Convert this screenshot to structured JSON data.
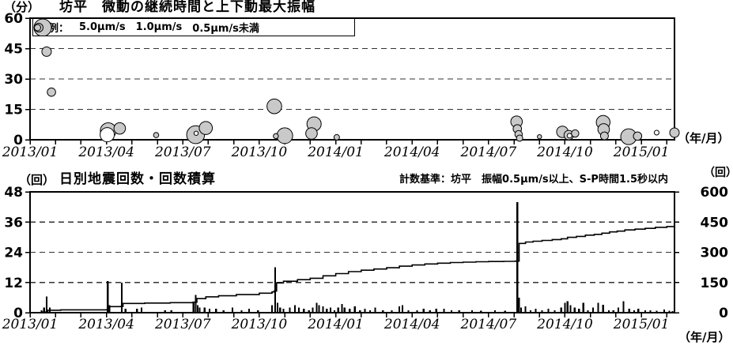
{
  "colors": {
    "background": "#ffffff",
    "axis": "#000000",
    "grid": "#333333",
    "bubble_fill": "#c9c9c9",
    "bubble_stroke": "#000000",
    "bar": "#000000",
    "line": "#000000"
  },
  "chart_data": [
    {
      "type": "scatter",
      "unit_label": "（分）",
      "title": "坊平　微動の継続時間と上下動最大振幅",
      "x_axis_suffix": "（年/月）",
      "ylim": [
        0,
        60
      ],
      "yticks": [
        0,
        15,
        30,
        45,
        60
      ],
      "ygrid": [
        15,
        30,
        45
      ],
      "x_start": "2013/01",
      "x_months_span": 25.3,
      "x_tick_labels": [
        {
          "m": 0,
          "label": "2013/01"
        },
        {
          "m": 3,
          "label": "2013/04"
        },
        {
          "m": 6,
          "label": "2013/07"
        },
        {
          "m": 9,
          "label": "2013/10"
        },
        {
          "m": 12,
          "label": "2014/01"
        },
        {
          "m": 15,
          "label": "2014/04"
        },
        {
          "m": 18,
          "label": "2014/07"
        },
        {
          "m": 21,
          "label": "2014/10"
        },
        {
          "m": 24,
          "label": "2015/01"
        }
      ],
      "legend": {
        "prefix": "凡例：",
        "items": [
          {
            "label": "5.0μm/s",
            "r": 11
          },
          {
            "label": "1.0μm/s",
            "r": 5.5
          },
          {
            "label": "0.5μm/s未満",
            "r": 4
          }
        ]
      },
      "bubbles": [
        {
          "m": 0.65,
          "v": 43.5,
          "r": 6
        },
        {
          "m": 0.84,
          "v": 23.5,
          "r": 5.3
        },
        {
          "m": 3.03,
          "v": 2.5,
          "r": 9,
          "open": true
        },
        {
          "m": 3.07,
          "v": 4.5,
          "r": 10
        },
        {
          "m": 3.52,
          "v": 5.6,
          "r": 7.3
        },
        {
          "m": 4.95,
          "v": 2.3,
          "r": 3.3
        },
        {
          "m": 6.5,
          "v": 2.5,
          "r": 11.3
        },
        {
          "m": 6.52,
          "v": 3.2,
          "r": 2.7,
          "open": true
        },
        {
          "m": 6.9,
          "v": 5.8,
          "r": 8.3
        },
        {
          "m": 9.59,
          "v": 16.5,
          "r": 9.3
        },
        {
          "m": 9.65,
          "v": 1.8,
          "r": 3.2
        },
        {
          "m": 10.0,
          "v": 2.0,
          "r": 10
        },
        {
          "m": 11.05,
          "v": 3.1,
          "r": 7.3
        },
        {
          "m": 11.15,
          "v": 7.8,
          "r": 9
        },
        {
          "m": 12.04,
          "v": 1.2,
          "r": 3.5
        },
        {
          "m": 19.1,
          "v": 8.9,
          "r": 7.3
        },
        {
          "m": 19.13,
          "v": 5.4,
          "r": 5.3
        },
        {
          "m": 19.18,
          "v": 2.7,
          "r": 4.7
        },
        {
          "m": 19.22,
          "v": 0.8,
          "r": 4
        },
        {
          "m": 20.0,
          "v": 1.5,
          "r": 2.7
        },
        {
          "m": 20.9,
          "v": 3.9,
          "r": 7.3
        },
        {
          "m": 21.15,
          "v": 2.3,
          "r": 6
        },
        {
          "m": 21.18,
          "v": 2.0,
          "r": 3,
          "open": true
        },
        {
          "m": 21.4,
          "v": 3.1,
          "r": 4.7
        },
        {
          "m": 22.5,
          "v": 8.6,
          "r": 8.7
        },
        {
          "m": 22.52,
          "v": 5.1,
          "r": 7.3
        },
        {
          "m": 22.55,
          "v": 1.9,
          "r": 5
        },
        {
          "m": 23.5,
          "v": 1.5,
          "r": 10
        },
        {
          "m": 23.85,
          "v": 1.8,
          "r": 5.3
        },
        {
          "m": 24.6,
          "v": 3.5,
          "r": 3,
          "open": true
        },
        {
          "m": 25.3,
          "v": 3.5,
          "r": 6
        }
      ]
    },
    {
      "type": "bar+line",
      "unit_label": "（回）",
      "title": "日別地震回数・回数積算",
      "note": "計数基準：坊平　振幅0.5μm/s以上、S-P時間1.5秒以内",
      "right_unit_label": "（回）",
      "x_axis_suffix": "（年/月）",
      "left_ylim": [
        0,
        48
      ],
      "left_yticks": [
        0,
        12,
        24,
        36,
        48
      ],
      "left_ygrid": [
        12,
        24,
        36
      ],
      "right_ylim": [
        0,
        600
      ],
      "right_yticks": [
        0,
        150,
        300,
        450,
        600
      ],
      "x_start": "2013/01",
      "x_months_span": 25.3,
      "x_tick_labels": [
        {
          "m": 0,
          "label": "2013/01"
        },
        {
          "m": 3,
          "label": "2013/04"
        },
        {
          "m": 6,
          "label": "2013/07"
        },
        {
          "m": 9,
          "label": "2013/10"
        },
        {
          "m": 12,
          "label": "2014/01"
        },
        {
          "m": 15,
          "label": "2014/04"
        },
        {
          "m": 18,
          "label": "2014/07"
        },
        {
          "m": 21,
          "label": "2014/10"
        },
        {
          "m": 24,
          "label": "2015/01"
        }
      ],
      "bars": [
        [
          0.45,
          1
        ],
        [
          0.55,
          2
        ],
        [
          0.65,
          6.5
        ],
        [
          0.78,
          2
        ],
        [
          3.05,
          12.5
        ],
        [
          3.12,
          3
        ],
        [
          3.6,
          12
        ],
        [
          3.75,
          1.5
        ],
        [
          4.2,
          1.5
        ],
        [
          4.38,
          2
        ],
        [
          5.3,
          1
        ],
        [
          5.55,
          1
        ],
        [
          6.42,
          4
        ],
        [
          6.5,
          7
        ],
        [
          6.58,
          3
        ],
        [
          6.66,
          2
        ],
        [
          6.85,
          2
        ],
        [
          7.05,
          1.5
        ],
        [
          7.3,
          1.5
        ],
        [
          7.6,
          1
        ],
        [
          7.95,
          2
        ],
        [
          8.3,
          1
        ],
        [
          8.6,
          1.5
        ],
        [
          8.95,
          1
        ],
        [
          9.5,
          3
        ],
        [
          9.62,
          18
        ],
        [
          9.72,
          4
        ],
        [
          9.82,
          2
        ],
        [
          9.95,
          1.5
        ],
        [
          10.2,
          2
        ],
        [
          10.4,
          3
        ],
        [
          10.55,
          2
        ],
        [
          10.75,
          1.5
        ],
        [
          10.95,
          1
        ],
        [
          11.1,
          2
        ],
        [
          11.25,
          4
        ],
        [
          11.35,
          3
        ],
        [
          11.5,
          2.5
        ],
        [
          11.65,
          1.5
        ],
        [
          11.8,
          2
        ],
        [
          11.95,
          1
        ],
        [
          12.1,
          2
        ],
        [
          12.25,
          3.5
        ],
        [
          12.35,
          2
        ],
        [
          12.55,
          1.5
        ],
        [
          12.75,
          2.5
        ],
        [
          12.95,
          1
        ],
        [
          13.15,
          1.5
        ],
        [
          13.35,
          1
        ],
        [
          13.55,
          2
        ],
        [
          13.85,
          1
        ],
        [
          14.2,
          1
        ],
        [
          14.5,
          2.5
        ],
        [
          14.62,
          3
        ],
        [
          14.85,
          1
        ],
        [
          15.2,
          1
        ],
        [
          15.45,
          1.5
        ],
        [
          15.7,
          1
        ],
        [
          15.95,
          1.5
        ],
        [
          16.25,
          1.5
        ],
        [
          16.55,
          1
        ],
        [
          16.85,
          1
        ],
        [
          17.35,
          1
        ],
        [
          17.7,
          0.8
        ],
        [
          18.25,
          1
        ],
        [
          18.65,
          0.8
        ],
        [
          19.13,
          44
        ],
        [
          19.2,
          6
        ],
        [
          19.28,
          2
        ],
        [
          19.45,
          2.5
        ],
        [
          19.65,
          1
        ],
        [
          19.85,
          1.5
        ],
        [
          20.1,
          1
        ],
        [
          20.35,
          1.5
        ],
        [
          20.6,
          1
        ],
        [
          20.85,
          2
        ],
        [
          21.0,
          4
        ],
        [
          21.1,
          4.5
        ],
        [
          21.22,
          3
        ],
        [
          21.38,
          2
        ],
        [
          21.55,
          1.5
        ],
        [
          21.72,
          4
        ],
        [
          21.9,
          1
        ],
        [
          22.1,
          2
        ],
        [
          22.3,
          4
        ],
        [
          22.5,
          3.2
        ],
        [
          22.72,
          1
        ],
        [
          22.9,
          1
        ],
        [
          23.1,
          2
        ],
        [
          23.3,
          4.5
        ],
        [
          23.52,
          1.5
        ],
        [
          23.72,
          1
        ],
        [
          23.88,
          1.5
        ],
        [
          24.15,
          1
        ],
        [
          24.35,
          1
        ],
        [
          24.6,
          0.8
        ],
        [
          24.9,
          1.2
        ],
        [
          25.1,
          0.8
        ],
        [
          25.22,
          0.6
        ]
      ],
      "cumulative_line": [
        [
          0,
          0
        ],
        [
          0.45,
          3
        ],
        [
          0.7,
          12
        ],
        [
          1.2,
          14
        ],
        [
          3.0,
          15
        ],
        [
          3.1,
          30
        ],
        [
          3.55,
          31
        ],
        [
          3.65,
          46
        ],
        [
          4.5,
          48
        ],
        [
          5.5,
          50
        ],
        [
          6.4,
          52
        ],
        [
          6.55,
          70
        ],
        [
          6.9,
          79
        ],
        [
          7.4,
          84
        ],
        [
          8.1,
          90
        ],
        [
          9.0,
          97
        ],
        [
          9.5,
          103
        ],
        [
          9.58,
          107
        ],
        [
          9.68,
          148
        ],
        [
          9.95,
          156
        ],
        [
          10.5,
          164
        ],
        [
          11.0,
          171
        ],
        [
          11.5,
          183
        ],
        [
          12.0,
          194
        ],
        [
          12.5,
          204
        ],
        [
          13.0,
          211
        ],
        [
          13.5,
          217
        ],
        [
          14.0,
          223
        ],
        [
          14.5,
          231
        ],
        [
          15.0,
          237
        ],
        [
          15.5,
          242
        ],
        [
          16.0,
          246
        ],
        [
          16.5,
          249
        ],
        [
          17.0,
          251
        ],
        [
          17.5,
          253
        ],
        [
          18.0,
          254
        ],
        [
          18.6,
          255
        ],
        [
          19.05,
          256
        ],
        [
          19.2,
          344
        ],
        [
          19.45,
          351
        ],
        [
          19.75,
          355
        ],
        [
          20.1,
          359
        ],
        [
          20.5,
          363
        ],
        [
          20.85,
          367
        ],
        [
          21.1,
          374
        ],
        [
          21.45,
          379
        ],
        [
          21.8,
          385
        ],
        [
          22.15,
          389
        ],
        [
          22.45,
          395
        ],
        [
          22.75,
          401
        ],
        [
          23.05,
          405
        ],
        [
          23.35,
          411
        ],
        [
          23.75,
          415
        ],
        [
          24.15,
          419
        ],
        [
          24.55,
          424
        ],
        [
          25.0,
          428
        ],
        [
          25.3,
          431
        ]
      ]
    }
  ]
}
